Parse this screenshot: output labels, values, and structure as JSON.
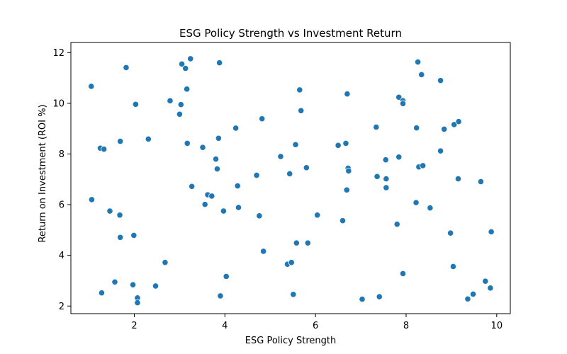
{
  "chart_data": {
    "type": "scatter",
    "title": "ESG Policy Strength vs Investment Return",
    "xlabel": "ESG Policy Strength",
    "ylabel": "Return on Investment (ROI %)",
    "xlim": [
      0.6,
      10.3
    ],
    "ylim": [
      1.7,
      12.4
    ],
    "xticks": [
      2,
      4,
      6,
      8,
      10
    ],
    "yticks": [
      2,
      4,
      6,
      8,
      10,
      12
    ],
    "grid": false,
    "marker_color": "#1f77b4",
    "points": [
      {
        "x": 1.05,
        "y": 10.67
      },
      {
        "x": 1.06,
        "y": 6.2
      },
      {
        "x": 1.25,
        "y": 8.23
      },
      {
        "x": 1.33,
        "y": 8.19
      },
      {
        "x": 1.28,
        "y": 2.52
      },
      {
        "x": 1.46,
        "y": 5.75
      },
      {
        "x": 1.57,
        "y": 2.95
      },
      {
        "x": 1.68,
        "y": 5.59
      },
      {
        "x": 1.69,
        "y": 8.5
      },
      {
        "x": 1.69,
        "y": 4.71
      },
      {
        "x": 1.82,
        "y": 11.41
      },
      {
        "x": 1.97,
        "y": 2.84
      },
      {
        "x": 1.99,
        "y": 4.79
      },
      {
        "x": 2.03,
        "y": 9.96
      },
      {
        "x": 2.07,
        "y": 2.32
      },
      {
        "x": 2.07,
        "y": 2.13
      },
      {
        "x": 2.31,
        "y": 8.59
      },
      {
        "x": 2.47,
        "y": 2.79
      },
      {
        "x": 2.68,
        "y": 3.72
      },
      {
        "x": 2.79,
        "y": 10.1
      },
      {
        "x": 3.0,
        "y": 9.57
      },
      {
        "x": 3.03,
        "y": 9.95
      },
      {
        "x": 3.05,
        "y": 11.55
      },
      {
        "x": 3.13,
        "y": 11.38
      },
      {
        "x": 3.16,
        "y": 10.56
      },
      {
        "x": 3.17,
        "y": 8.42
      },
      {
        "x": 3.24,
        "y": 11.76
      },
      {
        "x": 3.27,
        "y": 6.72
      },
      {
        "x": 3.51,
        "y": 8.26
      },
      {
        "x": 3.56,
        "y": 6.01
      },
      {
        "x": 3.62,
        "y": 6.39
      },
      {
        "x": 3.71,
        "y": 6.34
      },
      {
        "x": 3.8,
        "y": 7.8
      },
      {
        "x": 3.83,
        "y": 7.41
      },
      {
        "x": 3.86,
        "y": 8.62
      },
      {
        "x": 3.88,
        "y": 11.6
      },
      {
        "x": 3.9,
        "y": 2.4
      },
      {
        "x": 3.97,
        "y": 5.75
      },
      {
        "x": 4.03,
        "y": 3.17
      },
      {
        "x": 4.24,
        "y": 9.02
      },
      {
        "x": 4.28,
        "y": 6.74
      },
      {
        "x": 4.3,
        "y": 5.89
      },
      {
        "x": 4.7,
        "y": 7.16
      },
      {
        "x": 4.76,
        "y": 5.56
      },
      {
        "x": 4.82,
        "y": 9.39
      },
      {
        "x": 4.85,
        "y": 4.16
      },
      {
        "x": 5.23,
        "y": 7.9
      },
      {
        "x": 5.38,
        "y": 3.65
      },
      {
        "x": 5.43,
        "y": 7.22
      },
      {
        "x": 5.47,
        "y": 3.72
      },
      {
        "x": 5.51,
        "y": 2.46
      },
      {
        "x": 5.56,
        "y": 8.37
      },
      {
        "x": 5.58,
        "y": 4.49
      },
      {
        "x": 5.65,
        "y": 10.53
      },
      {
        "x": 5.68,
        "y": 9.71
      },
      {
        "x": 5.8,
        "y": 7.46
      },
      {
        "x": 5.83,
        "y": 4.49
      },
      {
        "x": 6.04,
        "y": 5.59
      },
      {
        "x": 6.5,
        "y": 8.34
      },
      {
        "x": 6.6,
        "y": 5.37
      },
      {
        "x": 6.67,
        "y": 8.42
      },
      {
        "x": 6.69,
        "y": 6.58
      },
      {
        "x": 6.7,
        "y": 10.37
      },
      {
        "x": 6.72,
        "y": 7.44
      },
      {
        "x": 6.73,
        "y": 7.33
      },
      {
        "x": 7.03,
        "y": 2.27
      },
      {
        "x": 7.34,
        "y": 9.06
      },
      {
        "x": 7.36,
        "y": 7.11
      },
      {
        "x": 7.41,
        "y": 2.37
      },
      {
        "x": 7.55,
        "y": 7.77
      },
      {
        "x": 7.56,
        "y": 7.02
      },
      {
        "x": 7.56,
        "y": 6.67
      },
      {
        "x": 7.8,
        "y": 5.23
      },
      {
        "x": 7.84,
        "y": 10.24
      },
      {
        "x": 7.84,
        "y": 7.88
      },
      {
        "x": 7.93,
        "y": 10.1
      },
      {
        "x": 7.93,
        "y": 9.99
      },
      {
        "x": 7.93,
        "y": 3.28
      },
      {
        "x": 8.22,
        "y": 6.08
      },
      {
        "x": 8.23,
        "y": 9.03
      },
      {
        "x": 8.26,
        "y": 11.63
      },
      {
        "x": 8.28,
        "y": 7.49
      },
      {
        "x": 8.34,
        "y": 11.13
      },
      {
        "x": 8.37,
        "y": 7.54
      },
      {
        "x": 8.53,
        "y": 5.87
      },
      {
        "x": 8.76,
        "y": 10.9
      },
      {
        "x": 8.76,
        "y": 8.12
      },
      {
        "x": 8.84,
        "y": 8.98
      },
      {
        "x": 8.98,
        "y": 4.88
      },
      {
        "x": 9.04,
        "y": 3.56
      },
      {
        "x": 9.06,
        "y": 9.16
      },
      {
        "x": 9.15,
        "y": 7.02
      },
      {
        "x": 9.16,
        "y": 9.28
      },
      {
        "x": 9.36,
        "y": 2.28
      },
      {
        "x": 9.48,
        "y": 2.47
      },
      {
        "x": 9.65,
        "y": 6.91
      },
      {
        "x": 9.75,
        "y": 2.98
      },
      {
        "x": 9.86,
        "y": 2.71
      },
      {
        "x": 9.88,
        "y": 4.93
      }
    ]
  }
}
